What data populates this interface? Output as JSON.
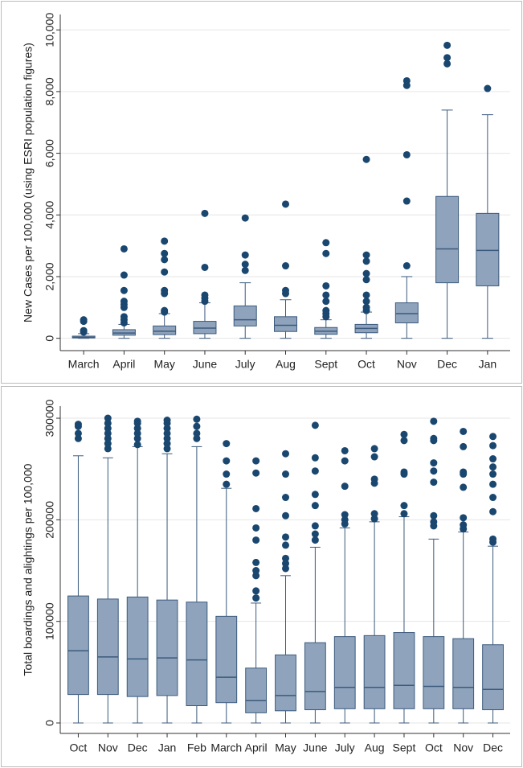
{
  "chart_data": [
    {
      "type": "box",
      "ylabel": "New Cases per 100,000 (using ESRI population figures)",
      "categories": [
        "March",
        "April",
        "May",
        "June",
        "July",
        "Aug",
        "Sept",
        "Oct",
        "Nov",
        "Dec",
        "Jan"
      ],
      "min": [
        0,
        0,
        0,
        0,
        0,
        0,
        0,
        0,
        0,
        0,
        0
      ],
      "q1": [
        10,
        100,
        120,
        150,
        400,
        220,
        130,
        180,
        500,
        1800,
        1700
      ],
      "median": [
        30,
        170,
        230,
        330,
        600,
        420,
        230,
        320,
        800,
        2900,
        2850
      ],
      "q3": [
        70,
        280,
        400,
        550,
        1050,
        700,
        350,
        450,
        1150,
        4600,
        4050
      ],
      "max": [
        150,
        450,
        800,
        1150,
        1800,
        1250,
        600,
        850,
        2000,
        7400,
        7250
      ],
      "outliers": [
        [
          200,
          250,
          550,
          600
        ],
        [
          500,
          600,
          700,
          1000,
          1100,
          1200,
          1550,
          2050,
          2900
        ],
        [
          850,
          900,
          1450,
          1550,
          2150,
          2550,
          2750,
          3150
        ],
        [
          1200,
          1300,
          1400,
          2300,
          4050
        ],
        [
          2200,
          2400,
          2700,
          3900
        ],
        [
          1450,
          1550,
          2350,
          4350
        ],
        [
          700,
          800,
          900,
          1200,
          1400,
          1700,
          2750,
          3100
        ],
        [
          900,
          1000,
          1200,
          1400,
          1900,
          2100,
          2500,
          2700,
          5800
        ],
        [
          2350,
          4450,
          5950,
          8200,
          8350
        ],
        [
          8900,
          9100,
          9500
        ],
        [
          8100
        ]
      ],
      "ylim": [
        -400,
        10500
      ],
      "yticks": [
        0,
        {
          "value": 2000,
          "label": "2,000"
        },
        {
          "value": 4000,
          "label": "4,000"
        },
        {
          "value": 6000,
          "label": "6,000"
        },
        {
          "value": 8000,
          "label": "8,000"
        },
        {
          "value": 10000,
          "label": "10,000"
        }
      ],
      "grid": true,
      "color": "#8fa4bc",
      "line_color": "#3b5a7d",
      "outlier_color": "#1a476f"
    },
    {
      "type": "box",
      "ylabel": "Total boardings and alightings per 100,000",
      "categories": [
        "Oct",
        "Nov",
        "Dec",
        "Jan",
        "Feb",
        "March",
        "April",
        "May",
        "June",
        "July",
        "Aug",
        "Sept",
        "Oct",
        "Nov",
        "Dec"
      ],
      "min": [
        0,
        0,
        0,
        0,
        0,
        0,
        0,
        0,
        0,
        0,
        0,
        0,
        0,
        0,
        0
      ],
      "q1": [
        28000,
        28000,
        26000,
        27000,
        17000,
        20000,
        10000,
        12000,
        13000,
        14000,
        14000,
        14000,
        14000,
        14000,
        13000
      ],
      "median": [
        71000,
        65000,
        63000,
        64000,
        62000,
        45000,
        22000,
        27000,
        31000,
        35000,
        35000,
        37000,
        36000,
        35000,
        33000
      ],
      "q3": [
        125000,
        122000,
        124000,
        121000,
        119000,
        105000,
        54000,
        67000,
        79000,
        85000,
        86000,
        89000,
        85000,
        83000,
        77000
      ],
      "max": [
        263000,
        261000,
        272000,
        265000,
        272000,
        231000,
        118000,
        145000,
        173000,
        192000,
        198000,
        203000,
        181000,
        188000,
        174000
      ],
      "outliers": [
        [
          280000,
          285000,
          292000,
          294000
        ],
        [
          270000,
          275000,
          280000,
          285000,
          290000,
          295000,
          300000
        ],
        [
          274000,
          280000,
          285000,
          290000,
          295000,
          297000
        ],
        [
          270000,
          275000,
          280000,
          285000,
          290000,
          295000,
          298000
        ],
        [
          280000,
          285000,
          292000,
          299000
        ],
        [
          235000,
          245000,
          258000,
          275000
        ],
        [
          123000,
          130000,
          145000,
          150000,
          158000,
          180000,
          192000,
          211000,
          246000,
          258000
        ],
        [
          152000,
          157000,
          162000,
          175000,
          183000,
          204000,
          222000,
          245000,
          265000
        ],
        [
          180000,
          186000,
          194000,
          214000,
          225000,
          248000,
          261000,
          293000
        ],
        [
          196000,
          200000,
          205000,
          233000,
          258000,
          268000
        ],
        [
          201000,
          206000,
          236000,
          240000,
          262000,
          270000
        ],
        [
          206000,
          214000,
          245000,
          247000,
          278000,
          284000
        ],
        [
          194000,
          198000,
          204000,
          237000,
          248000,
          256000,
          278000,
          280000,
          297000
        ],
        [
          191000,
          195000,
          202000,
          232000,
          245000,
          247000,
          272000,
          287000
        ],
        [
          178000,
          181000,
          208000,
          222000,
          235000,
          245000,
          252000,
          260000,
          273000,
          282000
        ]
      ],
      "ylim": [
        -10300,
        311900
      ],
      "yticks": [
        0,
        100000,
        200000,
        300000
      ],
      "grid": true,
      "color": "#8fa4bc",
      "line_color": "#3b5a7d",
      "outlier_color": "#1a476f"
    }
  ]
}
